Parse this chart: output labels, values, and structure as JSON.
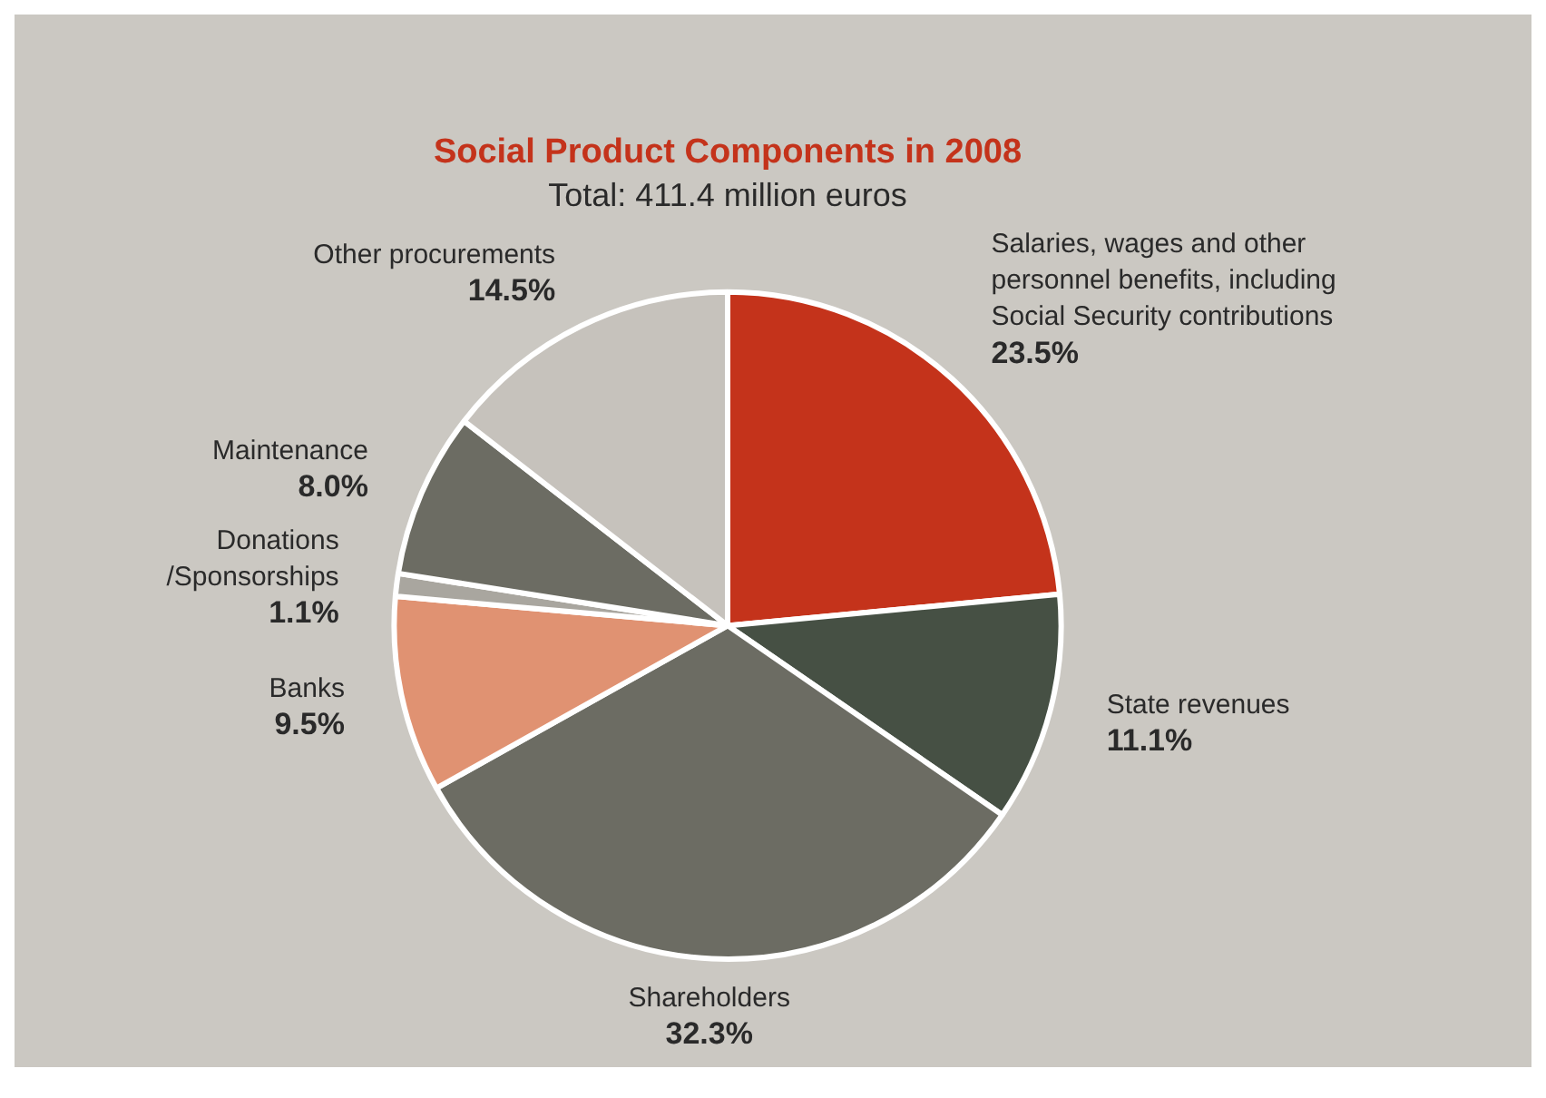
{
  "chart_data": {
    "type": "pie",
    "title": "Social Product Components in 2008",
    "subtitle": "Total: 411.4 million euros",
    "categories": [
      "Salaries, wages and other\npersonnel benefits, including\nSocial Security contributions",
      "State revenues",
      "Shareholders",
      "Banks",
      "Donations\n/Sponsorships",
      "Maintenance",
      "Other procurements"
    ],
    "values": [
      23.5,
      11.1,
      32.3,
      9.5,
      1.1,
      8.0,
      14.5
    ],
    "value_labels": [
      "23.5%",
      "11.1%",
      "32.3%",
      "9.5%",
      "1.1%",
      "8.0%",
      "14.5%"
    ],
    "colors": [
      "#c4331b",
      "#465044",
      "#6c6c63",
      "#e09272",
      "#a9a69f",
      "#6c6c63",
      "#c6c2bc"
    ],
    "legend": false
  }
}
